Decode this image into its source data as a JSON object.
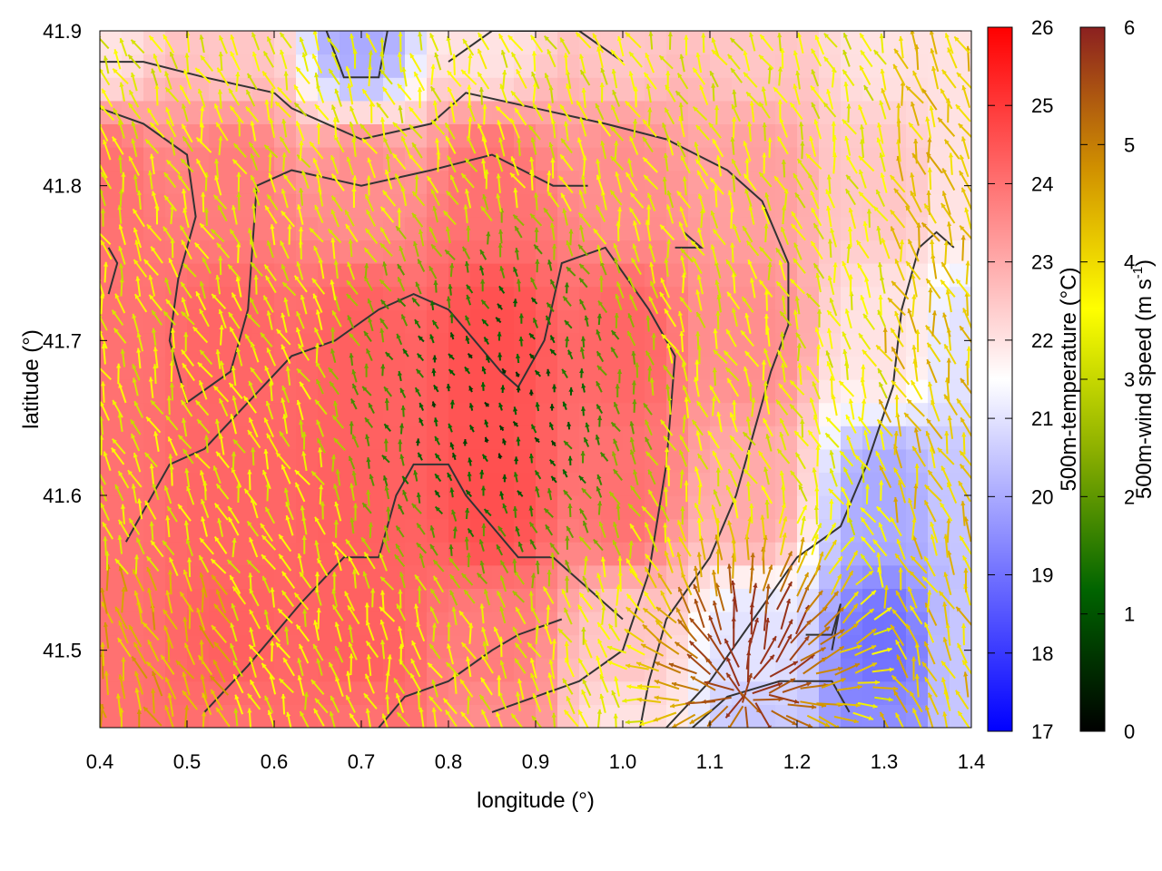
{
  "chart_data": {
    "type": "heatmap",
    "title": "",
    "xlabel": "longitude (°)",
    "ylabel": "latitude (°)",
    "xlim": [
      0.4,
      1.4
    ],
    "ylim": [
      41.45,
      41.9
    ],
    "xticks": [
      "0.4",
      "0.5",
      "0.6",
      "0.7",
      "0.8",
      "0.9",
      "1.0",
      "1.1",
      "1.2",
      "1.3",
      "1.4"
    ],
    "yticks": [
      "41.5",
      "41.6",
      "41.7",
      "41.8",
      "41.9"
    ],
    "temperature_colorbar": {
      "label": "500m-temperature (°C)",
      "range": [
        17,
        26
      ],
      "ticks": [
        "17",
        "18",
        "19",
        "20",
        "21",
        "22",
        "23",
        "24",
        "25",
        "26"
      ],
      "colors": [
        "#0000ff",
        "#ffffff",
        "#ff0000"
      ]
    },
    "wind_colorbar": {
      "label": "500m-wind speed (m s",
      "label_sup": "-1",
      "label_end": ")",
      "range": [
        0,
        6
      ],
      "ticks": [
        "0",
        "1",
        "2",
        "3",
        "4",
        "5",
        "6"
      ],
      "colors": [
        "#000000",
        "#006400",
        "#8db000",
        "#ffff00",
        "#d09000",
        "#8b2020"
      ]
    },
    "temperature_field": [
      {
        "lon": 0.4,
        "lat": 41.9,
        "t": 22.0
      },
      {
        "lon": 0.55,
        "lat": 41.9,
        "t": 22.5
      },
      {
        "lon": 0.7,
        "lat": 41.9,
        "t": 20.0
      },
      {
        "lon": 0.85,
        "lat": 41.9,
        "t": 22.0
      },
      {
        "lon": 1.0,
        "lat": 41.9,
        "t": 22.5
      },
      {
        "lon": 1.15,
        "lat": 41.9,
        "t": 22.5
      },
      {
        "lon": 1.3,
        "lat": 41.9,
        "t": 22.0
      },
      {
        "lon": 1.4,
        "lat": 41.9,
        "t": 22.0
      },
      {
        "lon": 0.4,
        "lat": 41.8,
        "t": 24.0
      },
      {
        "lon": 0.55,
        "lat": 41.8,
        "t": 23.8
      },
      {
        "lon": 0.7,
        "lat": 41.8,
        "t": 23.5
      },
      {
        "lon": 0.85,
        "lat": 41.8,
        "t": 24.0
      },
      {
        "lon": 1.0,
        "lat": 41.8,
        "t": 23.5
      },
      {
        "lon": 1.15,
        "lat": 41.8,
        "t": 23.2
      },
      {
        "lon": 1.3,
        "lat": 41.8,
        "t": 22.5
      },
      {
        "lon": 1.4,
        "lat": 41.8,
        "t": 22.0
      },
      {
        "lon": 0.4,
        "lat": 41.7,
        "t": 24.0
      },
      {
        "lon": 0.55,
        "lat": 41.7,
        "t": 24.2
      },
      {
        "lon": 0.7,
        "lat": 41.7,
        "t": 24.3
      },
      {
        "lon": 0.85,
        "lat": 41.7,
        "t": 24.6
      },
      {
        "lon": 1.0,
        "lat": 41.7,
        "t": 24.2
      },
      {
        "lon": 1.15,
        "lat": 41.7,
        "t": 23.5
      },
      {
        "lon": 1.3,
        "lat": 41.7,
        "t": 22.0
      },
      {
        "lon": 1.4,
        "lat": 41.7,
        "t": 21.0
      },
      {
        "lon": 0.4,
        "lat": 41.6,
        "t": 24.0
      },
      {
        "lon": 0.55,
        "lat": 41.6,
        "t": 24.2
      },
      {
        "lon": 0.7,
        "lat": 41.6,
        "t": 24.3
      },
      {
        "lon": 0.85,
        "lat": 41.6,
        "t": 24.6
      },
      {
        "lon": 1.0,
        "lat": 41.6,
        "t": 24.0
      },
      {
        "lon": 1.15,
        "lat": 41.6,
        "t": 23.0
      },
      {
        "lon": 1.3,
        "lat": 41.6,
        "t": 20.0
      },
      {
        "lon": 1.4,
        "lat": 41.6,
        "t": 20.5
      },
      {
        "lon": 0.4,
        "lat": 41.5,
        "t": 24.0
      },
      {
        "lon": 0.55,
        "lat": 41.5,
        "t": 24.3
      },
      {
        "lon": 0.7,
        "lat": 41.5,
        "t": 24.3
      },
      {
        "lon": 0.85,
        "lat": 41.5,
        "t": 23.8
      },
      {
        "lon": 1.0,
        "lat": 41.5,
        "t": 22.5
      },
      {
        "lon": 1.15,
        "lat": 41.5,
        "t": 21.0
      },
      {
        "lon": 1.3,
        "lat": 41.5,
        "t": 19.0
      },
      {
        "lon": 1.4,
        "lat": 41.5,
        "t": 20.5
      },
      {
        "lon": 0.4,
        "lat": 41.45,
        "t": 24.0
      },
      {
        "lon": 0.55,
        "lat": 41.45,
        "t": 24.0
      },
      {
        "lon": 0.7,
        "lat": 41.45,
        "t": 24.0
      },
      {
        "lon": 0.85,
        "lat": 41.45,
        "t": 23.5
      },
      {
        "lon": 1.0,
        "lat": 41.45,
        "t": 22.0
      },
      {
        "lon": 1.15,
        "lat": 41.45,
        "t": 20.5
      },
      {
        "lon": 1.3,
        "lat": 41.45,
        "t": 19.5
      },
      {
        "lon": 1.4,
        "lat": 41.45,
        "t": 20.5
      }
    ],
    "wind_vectors": {
      "sampling": "dense grid of arrows colored by wind speed",
      "typical_direction": "northward to north-westward, divergent in south-east",
      "speed_range": [
        0,
        6
      ]
    },
    "contours": [
      [
        [
          0.4,
          41.88
        ],
        [
          0.45,
          41.88
        ],
        [
          0.52,
          41.87
        ],
        [
          0.6,
          41.86
        ],
        [
          0.62,
          41.85
        ],
        [
          0.7,
          41.83
        ],
        [
          0.78,
          41.84
        ],
        [
          0.82,
          41.86
        ],
        [
          0.9,
          41.85
        ],
        [
          0.98,
          41.84
        ],
        [
          1.05,
          41.83
        ],
        [
          1.12,
          41.81
        ],
        [
          1.16,
          41.79
        ],
        [
          1.19,
          41.75
        ],
        [
          1.19,
          41.71
        ],
        [
          1.17,
          41.68
        ],
        [
          1.15,
          41.64
        ],
        [
          1.13,
          41.6
        ],
        [
          1.1,
          41.56
        ],
        [
          1.05,
          41.52
        ],
        [
          1.03,
          41.48
        ],
        [
          1.02,
          41.45
        ]
      ],
      [
        [
          0.4,
          41.85
        ],
        [
          0.45,
          41.84
        ],
        [
          0.5,
          41.82
        ],
        [
          0.51,
          41.78
        ],
        [
          0.49,
          41.74
        ],
        [
          0.48,
          41.7
        ],
        [
          0.5,
          41.66
        ],
        [
          0.55,
          41.68
        ],
        [
          0.57,
          41.72
        ],
        [
          0.58,
          41.8
        ],
        [
          0.62,
          41.81
        ],
        [
          0.7,
          41.8
        ],
        [
          0.78,
          41.81
        ],
        [
          0.85,
          41.82
        ],
        [
          0.92,
          41.8
        ],
        [
          0.96,
          41.8
        ]
      ],
      [
        [
          0.43,
          41.57
        ],
        [
          0.48,
          41.62
        ],
        [
          0.52,
          41.63
        ],
        [
          0.57,
          41.66
        ],
        [
          0.62,
          41.69
        ],
        [
          0.67,
          41.7
        ],
        [
          0.72,
          41.72
        ],
        [
          0.76,
          41.73
        ],
        [
          0.8,
          41.72
        ],
        [
          0.83,
          41.7
        ],
        [
          0.86,
          41.68
        ],
        [
          0.88,
          41.67
        ],
        [
          0.91,
          41.7
        ],
        [
          0.93,
          41.75
        ],
        [
          0.98,
          41.76
        ],
        [
          1.03,
          41.72
        ],
        [
          1.06,
          41.69
        ],
        [
          1.05,
          41.62
        ],
        [
          1.03,
          41.55
        ],
        [
          1.0,
          41.5
        ],
        [
          0.95,
          41.48
        ],
        [
          0.9,
          41.47
        ],
        [
          0.85,
          41.46
        ]
      ],
      [
        [
          0.52,
          41.46
        ],
        [
          0.57,
          41.49
        ],
        [
          0.63,
          41.53
        ],
        [
          0.68,
          41.56
        ],
        [
          0.72,
          41.56
        ],
        [
          0.74,
          41.6
        ],
        [
          0.76,
          41.62
        ],
        [
          0.8,
          41.62
        ],
        [
          0.82,
          41.6
        ],
        [
          0.85,
          41.58
        ],
        [
          0.88,
          41.56
        ],
        [
          0.92,
          41.56
        ],
        [
          0.96,
          41.54
        ],
        [
          0.98,
          41.53
        ],
        [
          1.0,
          41.52
        ]
      ],
      [
        [
          0.72,
          41.45
        ],
        [
          0.75,
          41.47
        ],
        [
          0.8,
          41.48
        ],
        [
          0.85,
          41.5
        ],
        [
          0.88,
          41.51
        ],
        [
          0.93,
          41.52
        ]
      ],
      [
        [
          1.05,
          41.45
        ],
        [
          1.1,
          41.48
        ],
        [
          1.15,
          41.52
        ],
        [
          1.2,
          41.56
        ],
        [
          1.25,
          41.58
        ],
        [
          1.28,
          41.62
        ],
        [
          1.31,
          41.67
        ],
        [
          1.32,
          41.72
        ],
        [
          1.34,
          41.76
        ],
        [
          1.36,
          41.77
        ],
        [
          1.38,
          41.76
        ]
      ],
      [
        [
          1.08,
          41.45
        ],
        [
          1.12,
          41.47
        ],
        [
          1.18,
          41.48
        ],
        [
          1.24,
          41.48
        ],
        [
          1.26,
          41.46
        ]
      ],
      [
        [
          1.21,
          41.51
        ],
        [
          1.24,
          41.51
        ],
        [
          1.25,
          41.53
        ],
        [
          1.24,
          41.5
        ]
      ],
      [
        [
          0.66,
          41.9
        ],
        [
          0.68,
          41.87
        ],
        [
          0.72,
          41.87
        ],
        [
          0.73,
          41.9
        ]
      ],
      [
        [
          0.8,
          41.88
        ],
        [
          0.85,
          41.9
        ],
        [
          0.95,
          41.9
        ],
        [
          1.0,
          41.88
        ]
      ],
      [
        [
          1.06,
          41.76
        ],
        [
          1.09,
          41.76
        ],
        [
          1.07,
          41.77
        ]
      ],
      [
        [
          0.41,
          41.76
        ],
        [
          0.42,
          41.75
        ],
        [
          0.41,
          41.73
        ]
      ]
    ]
  }
}
